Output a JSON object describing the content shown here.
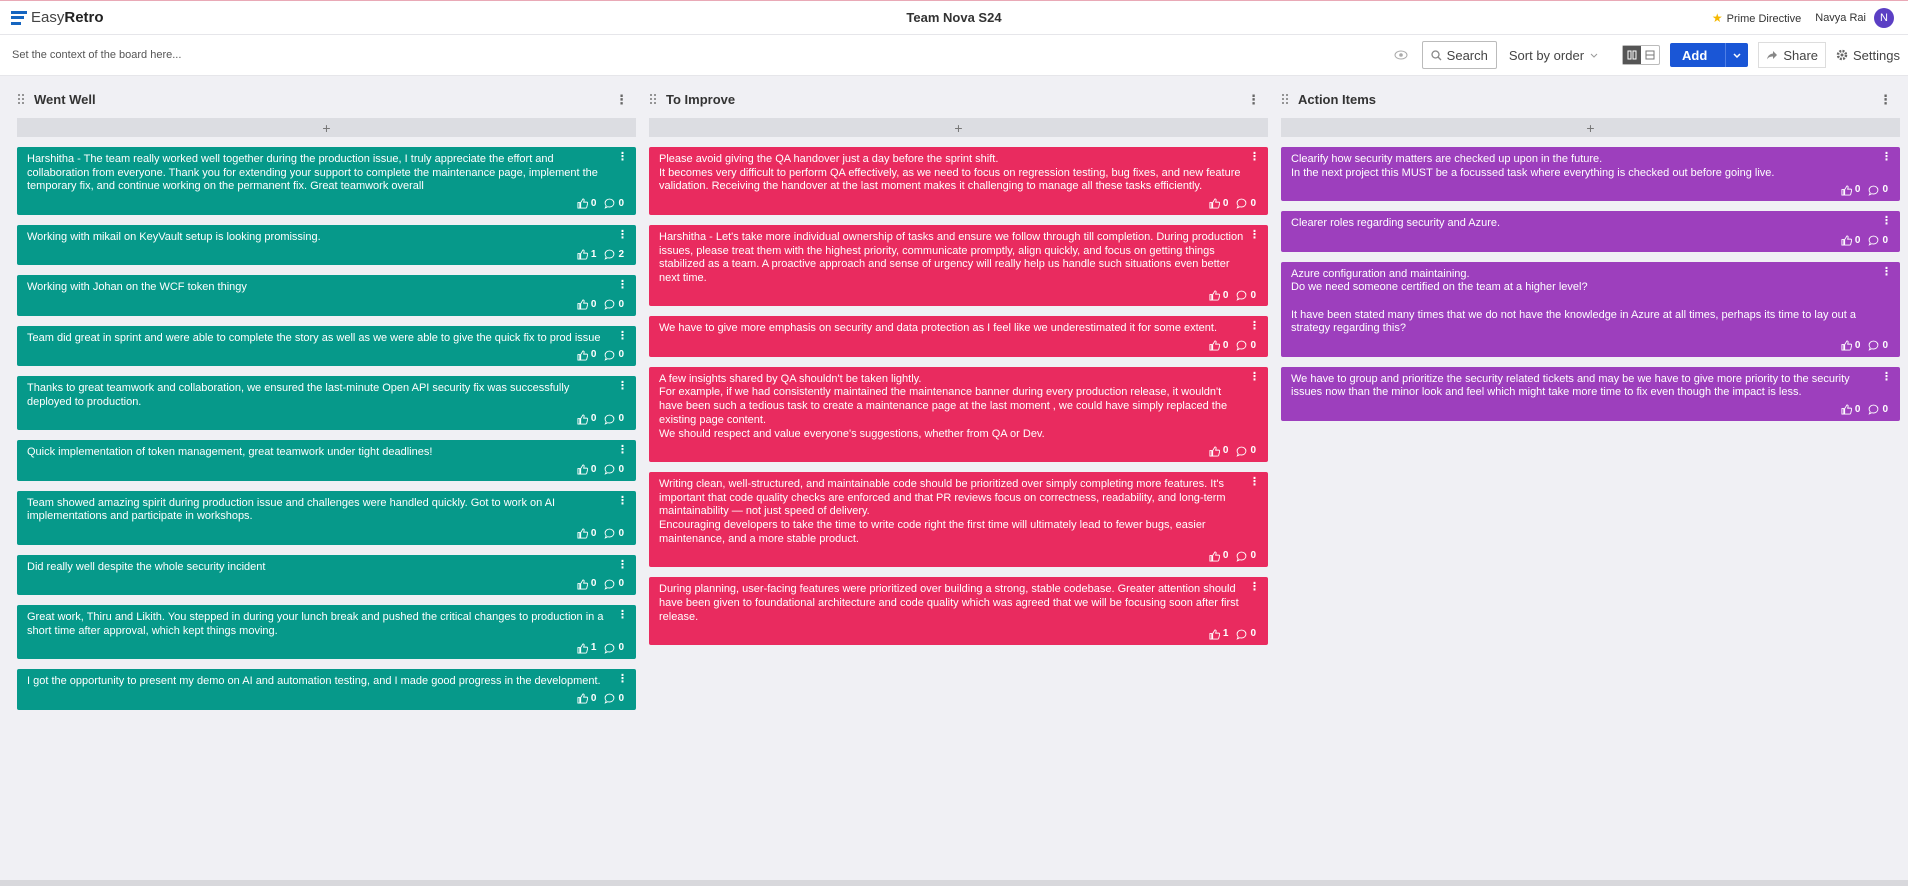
{
  "header": {
    "logo_light": "Easy",
    "logo_bold": "Retro",
    "board_title": "Team Nova S24",
    "prime_directive": "Prime Directive",
    "user_name": "Navya Rai",
    "avatar_initial": "N"
  },
  "toolbar": {
    "context_placeholder": "Set the context of the board here...",
    "search": "Search",
    "sort": "Sort by order",
    "add": "Add",
    "share": "Share",
    "settings": "Settings"
  },
  "columns": [
    {
      "title": "Went Well",
      "color": "#06998a",
      "cards": [
        {
          "text": [
            [
              "Harshitha - The team really worked well together during the production issue, I truly appreciate the effort and collaboration from everyone. Thank you for extending your support to complete the maintenance page, implement the temporary fix, and continue working on the permanent fix. Great teamwork overall"
            ]
          ],
          "likes": 0,
          "comments": 0
        },
        {
          "text": [
            [
              "Working with mikail on KeyVault setup is looking promissing."
            ]
          ],
          "likes": 1,
          "comments": 2
        },
        {
          "text": [
            [
              "Working with Johan on the WCF token thingy"
            ]
          ],
          "likes": 0,
          "comments": 0
        },
        {
          "text": [
            [
              "Team did great in sprint and were able to complete the story as well as we were able to give the quick fix to prod issue"
            ]
          ],
          "likes": 0,
          "comments": 0
        },
        {
          "text": [
            [
              "Thanks to great teamwork and collaboration, we ensured the last-minute Open API security fix was successfully deployed to production."
            ]
          ],
          "likes": 0,
          "comments": 0
        },
        {
          "text": [
            [
              "Quick implementation of token management, great teamwork under tight deadlines!"
            ]
          ],
          "likes": 0,
          "comments": 0
        },
        {
          "text": [
            [
              "Team showed amazing spirit during production issue and challenges were handled quickly. Got to work on AI implementations and participate in workshops."
            ]
          ],
          "likes": 0,
          "comments": 0
        },
        {
          "text": [
            [
              "Did really well despite the whole security incident"
            ]
          ],
          "likes": 0,
          "comments": 0
        },
        {
          "text": [
            [
              "Great work, Thiru and Likith. You stepped in during your lunch break and pushed the critical changes to production in a short time after approval, which kept things moving."
            ]
          ],
          "likes": 1,
          "comments": 0
        },
        {
          "text": [
            [
              "I got the opportunity to present my demo on AI and automation testing, and I made good progress in the development."
            ]
          ],
          "likes": 0,
          "comments": 0
        }
      ]
    },
    {
      "title": "To Improve",
      "color": "#e92b5f",
      "cards": [
        {
          "text": [
            [
              "Please avoid giving the QA handover just a day before the sprint shift.",
              "It becomes very difficult to perform QA effectively, as we need to focus on regression testing, bug fixes, and new feature validation. Receiving the handover at the last moment makes it challenging to manage all these tasks efficiently."
            ]
          ],
          "likes": 0,
          "comments": 0
        },
        {
          "text": [
            [
              "Harshitha - Let's take more individual ownership of tasks and ensure we follow through till completion. During production issues, please treat them with the highest priority, communicate promptly, align quickly, and focus on getting things stabilized as a team. A proactive approach and sense of urgency will really help us handle such situations even better next time."
            ]
          ],
          "likes": 0,
          "comments": 0
        },
        {
          "text": [
            [
              "We have to give more emphasis on security and data protection as I feel like we underestimated it for some extent."
            ]
          ],
          "likes": 0,
          "comments": 0
        },
        {
          "text": [
            [
              "A few insights shared by QA shouldn't be taken lightly.",
              "For example, if we had consistently maintained the maintenance banner during every production release, it wouldn't have been such a tedious task to create a maintenance page at the last moment , we could have simply replaced the existing page content.",
              "We should respect and value everyone's suggestions, whether from QA or Dev."
            ]
          ],
          "likes": 0,
          "comments": 0
        },
        {
          "text": [
            [
              "Writing clean, well-structured, and maintainable code should be prioritized over simply completing more features. It's important that code quality checks are enforced and that PR reviews focus on correctness, readability, and long-term maintainability — not just speed of delivery.",
              "Encouraging developers to take the time to write code right the first time will ultimately lead to fewer bugs, easier maintenance, and a more stable product."
            ]
          ],
          "likes": 0,
          "comments": 0
        },
        {
          "text": [
            [
              "During planning, user-facing features were prioritized over building a strong, stable codebase. Greater attention should have been given to foundational architecture and code quality which was agreed that we will be focusing soon after first release."
            ]
          ],
          "likes": 1,
          "comments": 0
        }
      ]
    },
    {
      "title": "Action Items",
      "color": "#9d3fbd",
      "cards": [
        {
          "text": [
            [
              "Clearify how security matters are checked up upon in the future.",
              "In the next project this MUST be a focussed task where everything is checked out before going live."
            ]
          ],
          "likes": 0,
          "comments": 0
        },
        {
          "text": [
            [
              "Clearer roles regarding security and Azure."
            ]
          ],
          "likes": 0,
          "comments": 0
        },
        {
          "text": [
            [
              "Azure configuration and maintaining.",
              "Do we need someone certified on the team at a higher level?"
            ],
            [
              "It have been stated many times that we do not have the knowledge in Azure at all times, perhaps its time to lay out a strategy regarding this?"
            ]
          ],
          "likes": 0,
          "comments": 0
        },
        {
          "text": [
            [
              "We have to group and prioritize the security related tickets and may be we have to give more priority to the security issues now than the minor look and feel which might take more time to fix even though the impact is less."
            ]
          ],
          "likes": 0,
          "comments": 0
        }
      ]
    }
  ]
}
